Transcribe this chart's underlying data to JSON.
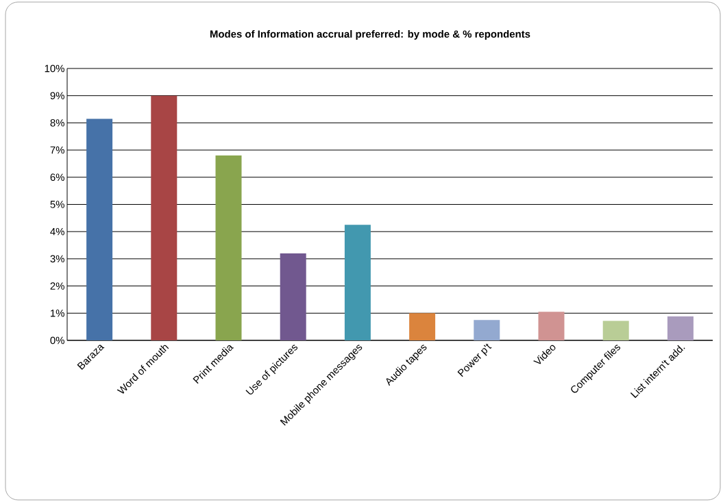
{
  "chart_data": {
    "type": "bar",
    "title": "Modes of Information accrual preferred: by mode & % repondents",
    "categories": [
      "Baraza",
      "Word of mouth",
      "Print media",
      "Use of pictures",
      "Mobile phone messages",
      "Audio tapes",
      "Power p't",
      "Video",
      "Computer files",
      "List intern't add."
    ],
    "values": [
      8.15,
      9.0,
      6.8,
      3.2,
      4.25,
      1.0,
      0.75,
      1.05,
      0.72,
      0.88
    ],
    "colors": [
      "#4672a8",
      "#a84545",
      "#89a54e",
      "#71588f",
      "#4298af",
      "#db843d",
      "#93a9d0",
      "#d09392",
      "#b9cd96",
      "#a99bbd"
    ],
    "ylim": [
      0,
      10
    ],
    "yticks": [
      {
        "value": 0,
        "label": "0%"
      },
      {
        "value": 1,
        "label": "1%"
      },
      {
        "value": 2,
        "label": "2%"
      },
      {
        "value": 3,
        "label": "3%"
      },
      {
        "value": 4,
        "label": "4%"
      },
      {
        "value": 5,
        "label": "5%"
      },
      {
        "value": 6,
        "label": "6%"
      },
      {
        "value": 7,
        "label": "7%"
      },
      {
        "value": 8,
        "label": "8%"
      },
      {
        "value": 9,
        "label": "9%"
      },
      {
        "value": 10,
        "label": "10%"
      }
    ],
    "grid": "y"
  }
}
